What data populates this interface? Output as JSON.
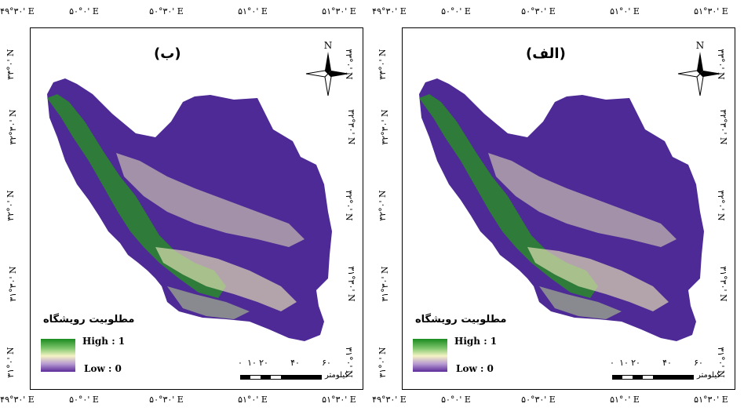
{
  "panels": [
    {
      "id": "left",
      "label": "(ب)",
      "ticks_top": [
        "۴۹°۳۰' E",
        "۵۰°۰' E",
        "۵۰°۳۰' E",
        "۵۱°۰' E",
        "۵۱°۳۰' E"
      ],
      "ticks_bottom": [
        "۴۹°۳۰' E",
        "۵۰°۰' E",
        "۵۰°۳۰' E",
        "۵۱°۰' E",
        "۵۱°۳۰' E"
      ],
      "ticks_left": [
        "۳۳°۰' N",
        "۳۲°۳۰' N",
        "۳۲°۰' N",
        "۳۱°۳۰' N",
        "۳۱°۰' N"
      ],
      "ticks_right": [
        "۳۳°۰' N",
        "۳۲°۳۰' N",
        "۳۲°۰' N",
        "۳۱°۳۰' N",
        "۳۱°۰' N"
      ]
    },
    {
      "id": "right",
      "label": "(الف)",
      "ticks_top": [
        "۴۹°۳۰' E",
        "۵۰°۰' E",
        "۵۰°۳۰' E",
        "۵۱°۰' E",
        "۵۱°۳۰' E"
      ],
      "ticks_bottom": [
        "۴۹°۳۰' E",
        "۵۰°۰' E",
        "۵۰°۳۰' E",
        "۵۱°۰' E",
        "۵۱°۳۰' E"
      ],
      "ticks_left": [
        "۳۳°۰' N",
        "۳۲°۳۰' N",
        "۳۲°۰' N",
        "۳۱°۳۰' N",
        "۳۱°۰' N"
      ],
      "ticks_right": [
        "۳۳°۰' N",
        "۳۲°۳۰' N",
        "۳۲°۰' N",
        "۳۱°۳۰' N",
        "۳۱°۰' N"
      ]
    }
  ],
  "north_arrow": {
    "letter": "N"
  },
  "legend": {
    "title": "مطلوبیت رویشگاه",
    "high": "High : 1",
    "low": "Low : 0",
    "colors": {
      "high": "#1a8a1f",
      "mid": "#f5f3c4",
      "low": "#5c2b9a"
    }
  },
  "scale": {
    "numbers": [
      "۰",
      "۱۰",
      "۲۰",
      "۴۰",
      "۶۰"
    ],
    "unit": "کیلومتر"
  },
  "map_colors": {
    "base": "#4d2a96",
    "light": "#e9e6b8",
    "green": "#2a8a2a"
  }
}
